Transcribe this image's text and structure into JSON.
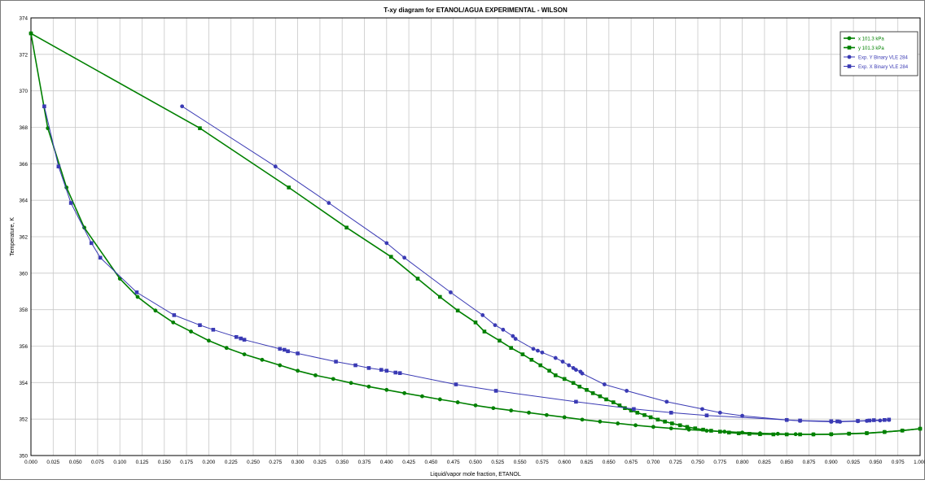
{
  "chart_data": {
    "type": "line",
    "title": "T-xy diagram for ETANOL/AGUA EXPERIMENTAL - WILSON",
    "xlabel": "Liquid/vapor mole fraction, ETANOL",
    "ylabel": "Temperature, K",
    "xlim": [
      0,
      1
    ],
    "ylim": [
      350,
      374
    ],
    "x_ticks": [
      "0.000",
      "0.025",
      "0.050",
      "0.075",
      "0.100",
      "0.125",
      "0.150",
      "0.175",
      "0.200",
      "0.225",
      "0.250",
      "0.275",
      "0.300",
      "0.325",
      "0.350",
      "0.375",
      "0.400",
      "0.425",
      "0.450",
      "0.475",
      "0.500",
      "0.525",
      "0.550",
      "0.575",
      "0.600",
      "0.625",
      "0.650",
      "0.675",
      "0.700",
      "0.725",
      "0.750",
      "0.775",
      "0.800",
      "0.825",
      "0.850",
      "0.875",
      "0.900",
      "0.925",
      "0.950",
      "0.975",
      "1.000"
    ],
    "y_ticks": [
      "350",
      "352",
      "354",
      "356",
      "358",
      "360",
      "362",
      "364",
      "366",
      "368",
      "370",
      "372",
      "374"
    ],
    "grid": true,
    "legend_position": "top-right",
    "series": [
      {
        "name": "x  101.3 kPa",
        "color": "#008000",
        "marker": "circle",
        "points": [
          [
            0.0,
            373.15
          ],
          [
            0.019,
            367.95
          ],
          [
            0.04,
            364.7
          ],
          [
            0.06,
            362.5
          ],
          [
            0.1,
            359.7
          ],
          [
            0.12,
            358.7
          ],
          [
            0.14,
            357.95
          ],
          [
            0.16,
            357.3
          ],
          [
            0.18,
            356.8
          ],
          [
            0.2,
            356.3
          ],
          [
            0.22,
            355.9
          ],
          [
            0.24,
            355.55
          ],
          [
            0.26,
            355.25
          ],
          [
            0.28,
            354.95
          ],
          [
            0.3,
            354.65
          ],
          [
            0.32,
            354.4
          ],
          [
            0.34,
            354.2
          ],
          [
            0.36,
            353.98
          ],
          [
            0.38,
            353.78
          ],
          [
            0.4,
            353.6
          ],
          [
            0.42,
            353.42
          ],
          [
            0.44,
            353.25
          ],
          [
            0.46,
            353.08
          ],
          [
            0.48,
            352.92
          ],
          [
            0.5,
            352.75
          ],
          [
            0.52,
            352.6
          ],
          [
            0.54,
            352.47
          ],
          [
            0.56,
            352.35
          ],
          [
            0.58,
            352.22
          ],
          [
            0.6,
            352.1
          ],
          [
            0.62,
            351.97
          ],
          [
            0.64,
            351.86
          ],
          [
            0.66,
            351.76
          ],
          [
            0.68,
            351.66
          ],
          [
            0.7,
            351.57
          ],
          [
            0.72,
            351.49
          ],
          [
            0.74,
            351.42
          ],
          [
            0.76,
            351.36
          ],
          [
            0.78,
            351.31
          ],
          [
            0.8,
            351.26
          ],
          [
            0.82,
            351.22
          ],
          [
            0.84,
            351.19
          ],
          [
            0.86,
            351.17
          ],
          [
            0.88,
            351.16
          ],
          [
            0.9,
            351.16
          ],
          [
            0.92,
            351.19
          ],
          [
            0.94,
            351.22
          ],
          [
            0.96,
            351.29
          ],
          [
            0.98,
            351.37
          ],
          [
            1.0,
            351.47
          ]
        ]
      },
      {
        "name": "y  101.3 kPa",
        "color": "#008000",
        "marker": "square",
        "points": [
          [
            0.0,
            373.15
          ],
          [
            0.19,
            367.95
          ],
          [
            0.29,
            364.7
          ],
          [
            0.355,
            362.5
          ],
          [
            0.405,
            360.9
          ],
          [
            0.435,
            359.7
          ],
          [
            0.46,
            358.7
          ],
          [
            0.48,
            357.95
          ],
          [
            0.5,
            357.3
          ],
          [
            0.51,
            356.8
          ],
          [
            0.527,
            356.3
          ],
          [
            0.54,
            355.9
          ],
          [
            0.553,
            355.55
          ],
          [
            0.563,
            355.25
          ],
          [
            0.573,
            354.95
          ],
          [
            0.583,
            354.65
          ],
          [
            0.59,
            354.4
          ],
          [
            0.6,
            354.2
          ],
          [
            0.61,
            353.98
          ],
          [
            0.617,
            353.78
          ],
          [
            0.625,
            353.6
          ],
          [
            0.632,
            353.42
          ],
          [
            0.64,
            353.25
          ],
          [
            0.647,
            353.08
          ],
          [
            0.655,
            352.92
          ],
          [
            0.662,
            352.75
          ],
          [
            0.668,
            352.6
          ],
          [
            0.675,
            352.47
          ],
          [
            0.682,
            352.35
          ],
          [
            0.69,
            352.22
          ],
          [
            0.697,
            352.1
          ],
          [
            0.705,
            351.97
          ],
          [
            0.713,
            351.86
          ],
          [
            0.721,
            351.76
          ],
          [
            0.73,
            351.66
          ],
          [
            0.738,
            351.57
          ],
          [
            0.747,
            351.49
          ],
          [
            0.756,
            351.42
          ],
          [
            0.765,
            351.36
          ],
          [
            0.775,
            351.31
          ],
          [
            0.785,
            351.26
          ],
          [
            0.796,
            351.22
          ],
          [
            0.808,
            351.19
          ],
          [
            0.82,
            351.17
          ],
          [
            0.835,
            351.16
          ],
          [
            0.85,
            351.16
          ],
          [
            0.865,
            351.16
          ],
          [
            0.88,
            351.16
          ],
          [
            0.9,
            351.17
          ],
          [
            0.92,
            351.2
          ],
          [
            0.94,
            351.23
          ],
          [
            0.96,
            351.29
          ],
          [
            0.98,
            351.37
          ],
          [
            1.0,
            351.47
          ]
        ]
      },
      {
        "name": "Exp. Y Binary VLE 284",
        "color": "#3a3ab4",
        "marker": "circle",
        "points": [
          [
            0.17,
            369.15
          ],
          [
            0.275,
            365.85
          ],
          [
            0.335,
            363.85
          ],
          [
            0.4,
            361.65
          ],
          [
            0.42,
            360.85
          ],
          [
            0.472,
            358.95
          ],
          [
            0.508,
            357.7
          ],
          [
            0.522,
            357.15
          ],
          [
            0.531,
            356.9
          ],
          [
            0.542,
            356.55
          ],
          [
            0.545,
            356.4
          ],
          [
            0.565,
            355.85
          ],
          [
            0.57,
            355.75
          ],
          [
            0.575,
            355.65
          ],
          [
            0.59,
            355.35
          ],
          [
            0.598,
            355.15
          ],
          [
            0.605,
            354.95
          ],
          [
            0.61,
            354.8
          ],
          [
            0.613,
            354.7
          ],
          [
            0.618,
            354.6
          ],
          [
            0.62,
            354.5
          ],
          [
            0.645,
            353.9
          ],
          [
            0.67,
            353.55
          ],
          [
            0.715,
            352.95
          ],
          [
            0.755,
            352.55
          ],
          [
            0.775,
            352.35
          ],
          [
            0.8,
            352.18
          ],
          [
            0.85,
            351.95
          ],
          [
            0.865,
            351.9
          ],
          [
            0.9,
            351.85
          ],
          [
            0.91,
            351.85
          ],
          [
            0.93,
            351.88
          ],
          [
            0.94,
            351.9
          ],
          [
            0.955,
            351.92
          ],
          [
            0.965,
            351.95
          ]
        ]
      },
      {
        "name": "Exp. X Binary VLE 284",
        "color": "#3a3ab4",
        "marker": "square",
        "points": [
          [
            0.015,
            369.15
          ],
          [
            0.031,
            365.85
          ],
          [
            0.045,
            363.85
          ],
          [
            0.068,
            361.65
          ],
          [
            0.078,
            360.85
          ],
          [
            0.119,
            358.95
          ],
          [
            0.161,
            357.7
          ],
          [
            0.19,
            357.15
          ],
          [
            0.205,
            356.9
          ],
          [
            0.231,
            356.5
          ],
          [
            0.236,
            356.42
          ],
          [
            0.24,
            356.35
          ],
          [
            0.28,
            355.85
          ],
          [
            0.285,
            355.8
          ],
          [
            0.289,
            355.72
          ],
          [
            0.3,
            355.6
          ],
          [
            0.343,
            355.15
          ],
          [
            0.365,
            354.95
          ],
          [
            0.38,
            354.8
          ],
          [
            0.394,
            354.7
          ],
          [
            0.4,
            354.65
          ],
          [
            0.41,
            354.55
          ],
          [
            0.415,
            354.52
          ],
          [
            0.478,
            353.9
          ],
          [
            0.523,
            353.55
          ],
          [
            0.613,
            352.95
          ],
          [
            0.678,
            352.55
          ],
          [
            0.72,
            352.35
          ],
          [
            0.76,
            352.2
          ],
          [
            0.85,
            351.95
          ],
          [
            0.865,
            351.92
          ],
          [
            0.9,
            351.88
          ],
          [
            0.907,
            351.87
          ],
          [
            0.93,
            351.9
          ],
          [
            0.943,
            351.92
          ],
          [
            0.948,
            351.94
          ],
          [
            0.96,
            351.95
          ],
          [
            0.965,
            351.97
          ]
        ]
      }
    ]
  }
}
